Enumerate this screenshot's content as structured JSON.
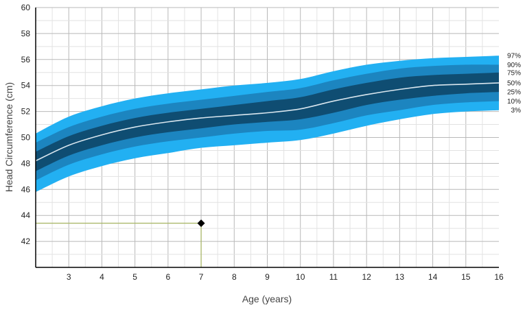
{
  "chart_data": {
    "type": "area",
    "xlabel": "Age (years)",
    "ylabel": "Head Circumference (cm)",
    "xlim": [
      2,
      16
    ],
    "ylim": [
      40,
      60
    ],
    "x_ticks": [
      3,
      4,
      5,
      6,
      7,
      8,
      9,
      10,
      11,
      12,
      13,
      14,
      15,
      16
    ],
    "y_ticks": [
      42,
      44,
      46,
      48,
      50,
      52,
      54,
      56,
      58,
      60
    ],
    "grid": true,
    "x": [
      2,
      3,
      4,
      5,
      6,
      7,
      8,
      9,
      10,
      11,
      12,
      13,
      14,
      15,
      16
    ],
    "series": [
      {
        "name": "97%",
        "values": [
          50.3,
          51.6,
          52.4,
          53.0,
          53.4,
          53.7,
          54.0,
          54.2,
          54.5,
          55.1,
          55.6,
          55.9,
          56.1,
          56.2,
          56.3
        ]
      },
      {
        "name": "90%",
        "values": [
          49.6,
          50.8,
          51.6,
          52.2,
          52.6,
          52.9,
          53.2,
          53.5,
          53.8,
          54.4,
          54.9,
          55.3,
          55.5,
          55.6,
          55.6
        ]
      },
      {
        "name": "75%",
        "values": [
          48.9,
          50.1,
          50.9,
          51.5,
          51.9,
          52.2,
          52.5,
          52.8,
          53.1,
          53.7,
          54.2,
          54.6,
          54.8,
          54.9,
          55.0
        ]
      },
      {
        "name": "50%",
        "values": [
          48.2,
          49.4,
          50.2,
          50.8,
          51.2,
          51.5,
          51.7,
          51.9,
          52.2,
          52.8,
          53.3,
          53.7,
          54.0,
          54.1,
          54.2
        ]
      },
      {
        "name": "25%",
        "values": [
          47.4,
          48.6,
          49.4,
          50.0,
          50.4,
          50.7,
          51.0,
          51.2,
          51.4,
          51.9,
          52.5,
          52.9,
          53.2,
          53.4,
          53.5
        ]
      },
      {
        "name": "10%",
        "values": [
          46.7,
          47.9,
          48.7,
          49.3,
          49.7,
          50.0,
          50.3,
          50.5,
          50.6,
          51.1,
          51.7,
          52.1,
          52.5,
          52.7,
          52.8
        ]
      },
      {
        "name": "3%",
        "values": [
          45.8,
          47.0,
          47.8,
          48.4,
          48.8,
          49.2,
          49.4,
          49.6,
          49.8,
          50.3,
          50.9,
          51.4,
          51.8,
          52.0,
          52.1
        ]
      }
    ],
    "marker": {
      "x": 7,
      "y": 43.4
    },
    "colors": {
      "outer_band": "#22b0f2",
      "mid_band": "#1c85c0",
      "inner_band": "#0f4d72",
      "median_line": "#d9e6ee",
      "marker": "#000000",
      "guide_line": "#aab86a",
      "grid": "#b8b8b8",
      "minor_grid": "#e2e2e2",
      "axis": "#000000"
    }
  }
}
